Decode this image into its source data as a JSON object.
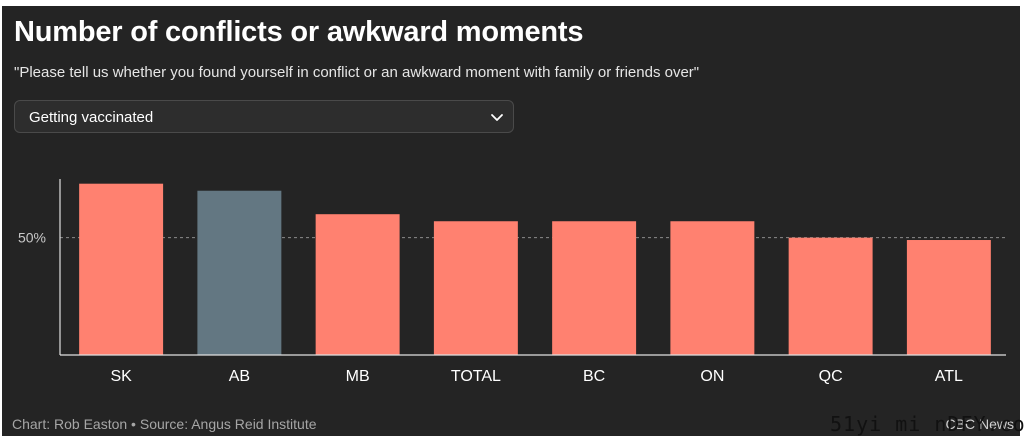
{
  "title": "Number of conflicts or awkward moments",
  "subtitle": "\"Please tell us whether you found yourself in conflict or an awkward moment with family or friends over\"",
  "dropdown": {
    "selected": "Getting vaccinated"
  },
  "footer": {
    "source": "Chart: Rob Easton • Source: Angus Reid Institute",
    "credit": "CBC News"
  },
  "watermark": "51yi mi nDFY.com",
  "colors": {
    "background": "#242424",
    "bar": "#ff8170",
    "highlight_bar": "#637782",
    "gridline": "#8a8a8a"
  },
  "icons": {
    "dropdown": "chevron-down-icon"
  },
  "chart_data": {
    "type": "bar",
    "categories": [
      "SK",
      "AB",
      "MB",
      "TOTAL",
      "BC",
      "ON",
      "QC",
      "ATL"
    ],
    "values": [
      73,
      70,
      60,
      57,
      57,
      57,
      50,
      49
    ],
    "highlight": "AB",
    "yticks": [
      50
    ],
    "ytick_labels": [
      "50%"
    ],
    "ylim": [
      0,
      75
    ],
    "title": "Number of conflicts or awkward moments",
    "xlabel": "",
    "ylabel": "",
    "grid": "dashed reference line at 50%"
  }
}
